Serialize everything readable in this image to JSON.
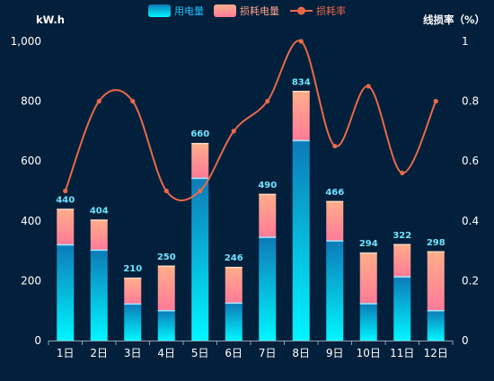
{
  "chart_data": {
    "type": "bar",
    "stacked": true,
    "categories": [
      "1日",
      "2日",
      "3日",
      "4日",
      "5日",
      "6日",
      "7日",
      "8日",
      "9日",
      "10日",
      "11日",
      "12日"
    ],
    "series": [
      {
        "name": "用电量",
        "type": "bar",
        "axis": "left",
        "values": [
          320,
          302,
          122,
          100,
          542,
          125,
          345,
          668,
          333,
          123,
          213,
          100
        ]
      },
      {
        "name": "损耗电量",
        "type": "bar",
        "axis": "left",
        "values": [
          120,
          102,
          88,
          150,
          118,
          121,
          145,
          166,
          133,
          171,
          109,
          198
        ]
      },
      {
        "name": "损耗率",
        "type": "line",
        "axis": "right",
        "smooth": true,
        "values": [
          0.5,
          0.8,
          0.8,
          0.5,
          0.5,
          0.7,
          0.8,
          1.0,
          0.65,
          0.85,
          0.56,
          0.8
        ]
      }
    ],
    "totals": [
      "440",
      "404",
      "210",
      "250",
      "660",
      "246",
      "490",
      "834",
      "466",
      "294",
      "322",
      "298"
    ],
    "ylabel": "kW.h",
    "y2label": "线损率（%）",
    "ylim": [
      0,
      1000
    ],
    "y2lim": [
      0,
      1
    ],
    "yticks": [
      "0",
      "200",
      "400",
      "600",
      "800",
      "1,000"
    ],
    "y2ticks": [
      "0",
      "0.2",
      "0.4",
      "0.6",
      "0.8",
      "1"
    ],
    "legend": [
      "用电量",
      "损耗电量",
      "损耗率"
    ],
    "legend_position": "top-center",
    "grid": false,
    "colors": {
      "background": "#02203b",
      "consumption_top": "#0d7bb8",
      "consumption_bottom": "#00f6ff",
      "loss_top": "#ffae8a",
      "loss_bottom": "#ff7a98",
      "line": "#e8694a",
      "label": "#6fe3ff",
      "legend_text_bar": "#1ec0ff",
      "legend_text_loss": "#ff9f8a",
      "legend_text_line": "#e8694a",
      "axis_text": "#ffffff"
    }
  }
}
